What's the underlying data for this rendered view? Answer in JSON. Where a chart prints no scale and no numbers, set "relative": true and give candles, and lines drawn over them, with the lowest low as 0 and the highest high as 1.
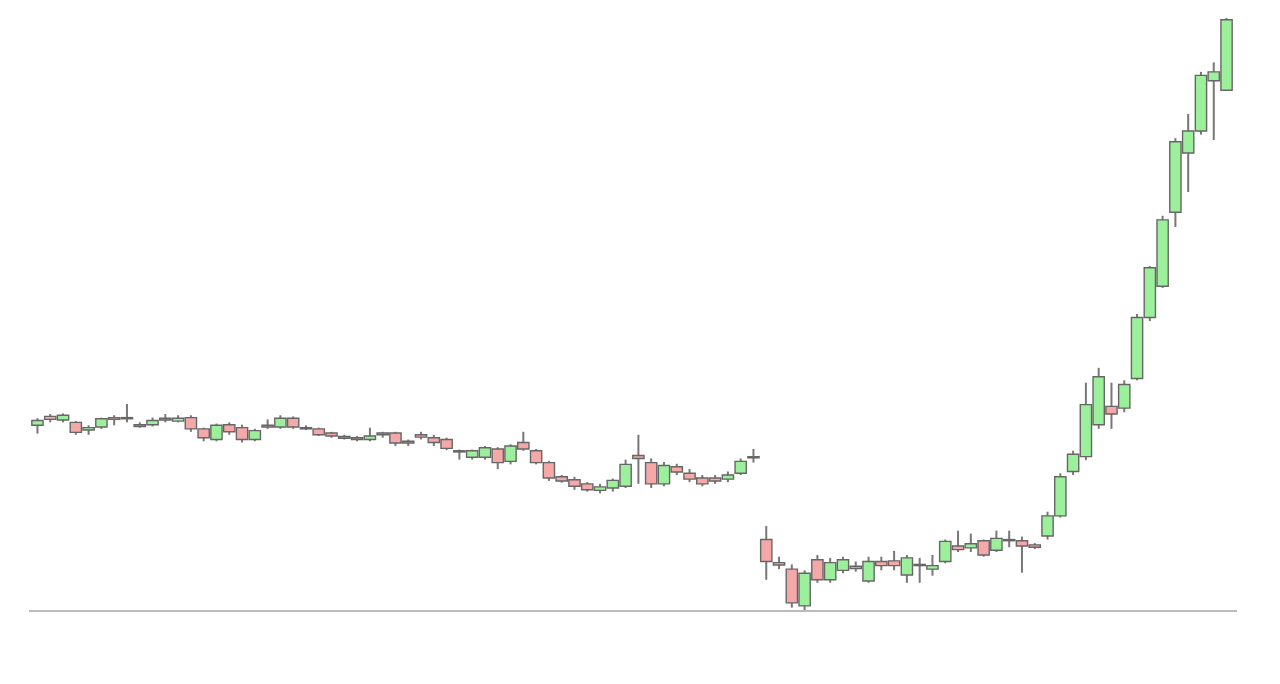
{
  "chart_data": {
    "type": "candlestick",
    "relative": true,
    "categories": [
      null,
      null,
      null,
      null,
      null,
      null,
      null,
      null,
      null,
      null,
      null,
      null,
      null,
      null,
      null,
      null,
      null,
      null,
      null,
      null,
      null,
      null,
      null,
      null,
      null,
      null,
      null,
      null,
      null,
      null,
      null,
      null,
      null,
      null,
      null,
      null,
      null,
      null,
      null,
      null,
      null,
      null,
      null,
      null,
      null,
      null,
      null,
      null,
      null,
      null,
      null,
      null,
      null,
      null,
      null,
      null,
      null,
      null,
      null,
      null,
      null,
      null,
      null,
      null,
      null,
      null,
      null,
      null,
      null,
      null,
      null,
      null,
      null,
      null,
      null,
      null,
      null,
      null,
      null,
      null,
      null,
      null,
      null,
      null,
      null,
      null,
      null,
      null,
      null,
      null,
      null,
      null,
      null,
      null
    ],
    "ohlc": [
      [
        0.312,
        0.324,
        0.298,
        0.32
      ],
      [
        0.327,
        0.331,
        0.317,
        0.322
      ],
      [
        0.321,
        0.332,
        0.317,
        0.329
      ],
      [
        0.317,
        0.319,
        0.296,
        0.3
      ],
      [
        0.304,
        0.312,
        0.296,
        0.308
      ],
      [
        0.309,
        0.325,
        0.306,
        0.323
      ],
      [
        0.325,
        0.329,
        0.312,
        0.322
      ],
      [
        0.323,
        0.348,
        0.317,
        0.325
      ],
      [
        0.313,
        0.317,
        0.308,
        0.31
      ],
      [
        0.313,
        0.325,
        0.31,
        0.32
      ],
      [
        0.324,
        0.331,
        0.317,
        0.321
      ],
      [
        0.319,
        0.329,
        0.317,
        0.324
      ],
      [
        0.325,
        0.329,
        0.301,
        0.306
      ],
      [
        0.306,
        0.308,
        0.285,
        0.291
      ],
      [
        0.288,
        0.315,
        0.285,
        0.312
      ],
      [
        0.313,
        0.317,
        0.296,
        0.301
      ],
      [
        0.308,
        0.313,
        0.283,
        0.288
      ],
      [
        0.288,
        0.306,
        0.285,
        0.303
      ],
      [
        0.312,
        0.322,
        0.306,
        0.309
      ],
      [
        0.309,
        0.329,
        0.306,
        0.324
      ],
      [
        0.324,
        0.327,
        0.306,
        0.309
      ],
      [
        0.308,
        0.312,
        0.304,
        0.306
      ],
      [
        0.306,
        0.308,
        0.294,
        0.296
      ],
      [
        0.299,
        0.301,
        0.291,
        0.294
      ],
      [
        0.293,
        0.296,
        0.288,
        0.29
      ],
      [
        0.291,
        0.294,
        0.285,
        0.288
      ],
      [
        0.288,
        0.308,
        0.285,
        0.294
      ],
      [
        0.299,
        0.301,
        0.291,
        0.296
      ],
      [
        0.299,
        0.301,
        0.277,
        0.282
      ],
      [
        0.285,
        0.288,
        0.277,
        0.282
      ],
      [
        0.296,
        0.301,
        0.288,
        0.292
      ],
      [
        0.291,
        0.296,
        0.277,
        0.283
      ],
      [
        0.288,
        0.291,
        0.27,
        0.273
      ],
      [
        0.269,
        0.271,
        0.254,
        0.267
      ],
      [
        0.258,
        0.271,
        0.254,
        0.269
      ],
      [
        0.258,
        0.277,
        0.254,
        0.274
      ],
      [
        0.272,
        0.275,
        0.238,
        0.249
      ],
      [
        0.251,
        0.28,
        0.246,
        0.277
      ],
      [
        0.283,
        0.301,
        0.269,
        0.272
      ],
      [
        0.269,
        0.272,
        0.246,
        0.249
      ],
      [
        0.249,
        0.252,
        0.218,
        0.223
      ],
      [
        0.225,
        0.228,
        0.215,
        0.218
      ],
      [
        0.22,
        0.225,
        0.203,
        0.209
      ],
      [
        0.213,
        0.216,
        0.2,
        0.203
      ],
      [
        0.202,
        0.213,
        0.197,
        0.208
      ],
      [
        0.206,
        0.222,
        0.2,
        0.219
      ],
      [
        0.209,
        0.254,
        0.206,
        0.246
      ],
      [
        0.261,
        0.296,
        0.213,
        0.256
      ],
      [
        0.249,
        0.256,
        0.206,
        0.213
      ],
      [
        0.213,
        0.25,
        0.209,
        0.244
      ],
      [
        0.242,
        0.247,
        0.228,
        0.233
      ],
      [
        0.231,
        0.238,
        0.216,
        0.221
      ],
      [
        0.223,
        0.228,
        0.209,
        0.213
      ],
      [
        0.223,
        0.228,
        0.213,
        0.218
      ],
      [
        0.221,
        0.234,
        0.216,
        0.228
      ],
      [
        0.231,
        0.256,
        0.228,
        0.251
      ],
      [
        0.257,
        0.272,
        0.249,
        0.259
      ],
      [
        0.119,
        0.142,
        0.051,
        0.082
      ],
      [
        0.08,
        0.09,
        0.069,
        0.076
      ],
      [
        0.069,
        0.077,
        0.004,
        0.012
      ],
      [
        0.007,
        0.067,
        0.0,
        0.062
      ],
      [
        0.085,
        0.093,
        0.046,
        0.051
      ],
      [
        0.051,
        0.088,
        0.046,
        0.08
      ],
      [
        0.067,
        0.09,
        0.062,
        0.085
      ],
      [
        0.074,
        0.082,
        0.065,
        0.07
      ],
      [
        0.049,
        0.09,
        0.046,
        0.082
      ],
      [
        0.082,
        0.09,
        0.067,
        0.075
      ],
      [
        0.083,
        0.1,
        0.067,
        0.075
      ],
      [
        0.059,
        0.093,
        0.046,
        0.088
      ],
      [
        0.075,
        0.088,
        0.046,
        0.077
      ],
      [
        0.069,
        0.093,
        0.058,
        0.075
      ],
      [
        0.082,
        0.119,
        0.079,
        0.116
      ],
      [
        0.108,
        0.134,
        0.098,
        0.102
      ],
      [
        0.105,
        0.129,
        0.098,
        0.112
      ],
      [
        0.117,
        0.119,
        0.09,
        0.093
      ],
      [
        0.101,
        0.134,
        0.098,
        0.121
      ],
      [
        0.117,
        0.134,
        0.106,
        0.119
      ],
      [
        0.117,
        0.124,
        0.063,
        0.108
      ],
      [
        0.11,
        0.113,
        0.103,
        0.106
      ],
      [
        0.125,
        0.166,
        0.119,
        0.159
      ],
      [
        0.159,
        0.231,
        0.156,
        0.225
      ],
      [
        0.234,
        0.269,
        0.228,
        0.263
      ],
      [
        0.259,
        0.384,
        0.253,
        0.347
      ],
      [
        0.313,
        0.409,
        0.306,
        0.394
      ],
      [
        0.344,
        0.384,
        0.306,
        0.331
      ],
      [
        0.341,
        0.388,
        0.334,
        0.381
      ],
      [
        0.391,
        0.5,
        0.388,
        0.494
      ],
      [
        0.494,
        0.581,
        0.488,
        0.578
      ],
      [
        0.547,
        0.666,
        0.544,
        0.659
      ],
      [
        0.672,
        0.797,
        0.647,
        0.791
      ],
      [
        0.772,
        0.838,
        0.706,
        0.809
      ],
      [
        0.809,
        0.909,
        0.803,
        0.903
      ],
      [
        0.894,
        0.925,
        0.794,
        0.909
      ],
      [
        0.878,
        1.0,
        0.878,
        0.997
      ]
    ]
  }
}
